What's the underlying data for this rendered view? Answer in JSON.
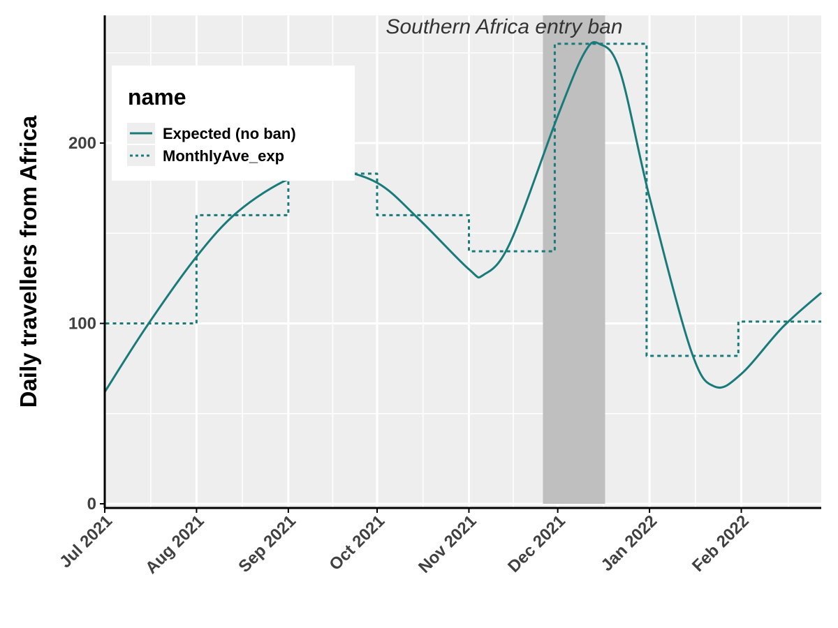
{
  "chart_data": {
    "type": "line",
    "title": "",
    "xlabel": "",
    "ylabel": "Daily travellers from Africa",
    "x_range": [
      "2021-07-01",
      "2022-02-28"
    ],
    "ylim": [
      0,
      265
    ],
    "y_ticks": [
      0,
      100,
      200
    ],
    "x_tick_dates": [
      "2021-07-01",
      "2021-08-01",
      "2021-09-01",
      "2021-10-01",
      "2021-11-01",
      "2021-12-01",
      "2022-01-01",
      "2022-02-01"
    ],
    "x_tick_labels": [
      "Jul 2021",
      "Aug 2021",
      "Sep 2021",
      "Oct 2021",
      "Nov 2021",
      "Dec 2021",
      "Jan 2022",
      "Feb 2022"
    ],
    "grid": true,
    "legend_position": "top-left",
    "legend_title": "name",
    "annotation": {
      "text": "Southern Africa entry ban",
      "start": "2021-11-26",
      "end": "2021-12-17",
      "color": "#bfbfbf"
    },
    "colors": {
      "series": "#1a7a7a",
      "panel_background": "#eeeeee",
      "grid": "#ffffff",
      "axis_line": "#000000"
    },
    "series": [
      {
        "name": "Expected (no ban)",
        "style": "solid",
        "x": [
          "2021-07-01",
          "2021-07-15",
          "2021-08-01",
          "2021-08-15",
          "2021-09-01",
          "2021-09-15",
          "2021-10-01",
          "2021-10-15",
          "2021-11-01",
          "2021-11-06",
          "2021-11-15",
          "2021-12-01",
          "2021-12-10",
          "2021-12-15",
          "2021-12-22",
          "2022-01-01",
          "2022-01-15",
          "2022-01-23",
          "2022-02-01",
          "2022-02-15",
          "2022-02-28"
        ],
        "y": [
          62,
          98,
          137,
          162,
          180,
          185,
          178,
          158,
          130,
          127,
          145,
          215,
          250,
          255,
          240,
          170,
          85,
          65,
          72,
          98,
          117
        ]
      },
      {
        "name": "MonthlyAve_exp",
        "style": "dotted",
        "x": [
          "2021-07-01",
          "2021-07-01",
          "2021-08-01",
          "2021-08-01",
          "2021-09-01",
          "2021-09-01",
          "2021-10-01",
          "2021-10-01",
          "2021-11-01",
          "2021-11-01",
          "2021-11-30",
          "2021-11-30",
          "2021-12-31",
          "2021-12-31",
          "2022-01-31",
          "2022-01-31",
          "2022-02-28"
        ],
        "y": [
          0,
          100,
          100,
          160,
          160,
          183,
          183,
          160,
          160,
          140,
          140,
          255,
          255,
          82,
          82,
          101,
          101
        ]
      }
    ]
  }
}
